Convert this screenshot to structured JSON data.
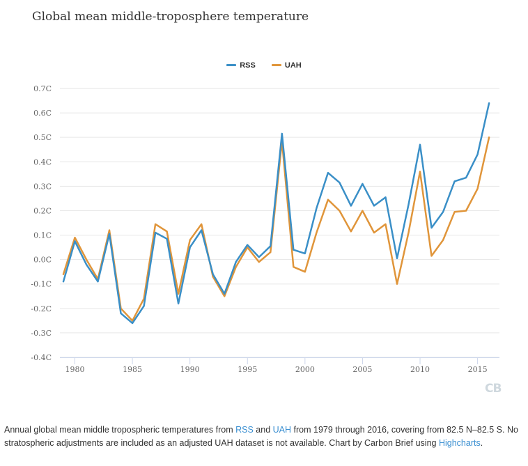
{
  "chart_data": {
    "type": "line",
    "title": "Global mean middle-troposphere temperature",
    "xlabel": "",
    "ylabel": "",
    "x": [
      1979,
      1980,
      1981,
      1982,
      1983,
      1984,
      1985,
      1986,
      1987,
      1988,
      1989,
      1990,
      1991,
      1992,
      1993,
      1994,
      1995,
      1996,
      1997,
      1998,
      1999,
      2000,
      2001,
      2002,
      2003,
      2004,
      2005,
      2006,
      2007,
      2008,
      2009,
      2010,
      2011,
      2012,
      2013,
      2014,
      2015,
      2016
    ],
    "xlim": [
      1978.7,
      2016.9
    ],
    "ylim": [
      -0.4,
      0.7
    ],
    "x_ticks": [
      "1980",
      "1985",
      "1990",
      "1995",
      "2000",
      "2005",
      "2010",
      "2015"
    ],
    "y_ticks": [
      "-0.4C",
      "-0.3C",
      "-0.2C",
      "-0.1C",
      "0.0C",
      "0.1C",
      "0.2C",
      "0.3C",
      "0.4C",
      "0.5C",
      "0.6C",
      "0.7C"
    ],
    "grid": true,
    "legend_position": "top-center",
    "series": [
      {
        "name": "RSS",
        "color": "#3a8fc7",
        "values": [
          -0.09,
          0.075,
          -0.02,
          -0.09,
          0.105,
          -0.22,
          -0.26,
          -0.19,
          0.11,
          0.085,
          -0.18,
          0.05,
          0.12,
          -0.06,
          -0.14,
          -0.01,
          0.06,
          0.01,
          0.055,
          0.515,
          0.04,
          0.025,
          0.21,
          0.355,
          0.315,
          0.22,
          0.31,
          0.22,
          0.255,
          0.005,
          0.225,
          0.47,
          0.13,
          0.195,
          0.32,
          0.335,
          0.43,
          0.64
        ]
      },
      {
        "name": "UAH",
        "color": "#e0953a",
        "values": [
          -0.06,
          0.09,
          0.0,
          -0.08,
          0.12,
          -0.2,
          -0.25,
          -0.16,
          0.145,
          0.115,
          -0.14,
          0.08,
          0.145,
          -0.07,
          -0.15,
          -0.03,
          0.05,
          -0.01,
          0.03,
          0.485,
          -0.03,
          -0.05,
          0.11,
          0.245,
          0.2,
          0.115,
          0.2,
          0.11,
          0.145,
          -0.1,
          0.11,
          0.36,
          0.015,
          0.08,
          0.195,
          0.2,
          0.29,
          0.5
        ]
      }
    ]
  },
  "logo_text": "CB",
  "caption": {
    "part1": "Annual global mean middle tropospheric temperatures from ",
    "link1": "RSS",
    "part2": " and ",
    "link2": "UAH",
    "part3": " from 1979 through 2016, covering from 82.5 N–82.5 S. No stratospheric adjustments are included as an adjusted UAH dataset is not available. Chart by Carbon Brief using ",
    "link3": "Highcharts",
    "part4": "."
  }
}
